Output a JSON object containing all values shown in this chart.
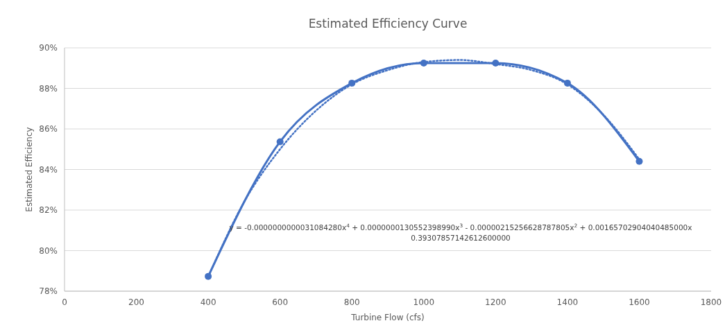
{
  "chart_data": {
    "type": "line",
    "title": "Estimated Efficiency Curve",
    "xlabel": "Turbine Flow (cfs)",
    "ylabel": "Estimated Efficiency",
    "series": [
      {
        "color": "#4472c4",
        "x": [
          400,
          600,
          800,
          1000,
          1200,
          1400,
          1600
        ],
        "values": [
          78.73,
          85.37,
          88.26,
          89.25,
          89.25,
          88.26,
          84.4
        ],
        "marker": "circle",
        "line_style": "solid"
      },
      {
        "color": "#4472c4",
        "x": [
          400,
          500,
          600,
          700,
          800,
          900,
          1000,
          1100,
          1200,
          1300,
          1400,
          1500,
          1600
        ],
        "values": [
          78.7,
          82.4,
          85.0,
          86.9,
          88.2,
          88.9,
          89.3,
          89.4,
          89.2,
          88.9,
          88.2,
          86.7,
          84.5
        ],
        "marker": "none",
        "line_style": "dotted"
      }
    ],
    "xlim": [
      0,
      1800
    ],
    "xticks": [
      0,
      200,
      400,
      600,
      800,
      1000,
      1200,
      1400,
      1600,
      1800
    ],
    "ylim": [
      78,
      90
    ],
    "yticks": [
      {
        "value": 78,
        "label": "78%"
      },
      {
        "value": 80,
        "label": "80%"
      },
      {
        "value": 82,
        "label": "82%"
      },
      {
        "value": 84,
        "label": "84%"
      },
      {
        "value": 86,
        "label": "86%"
      },
      {
        "value": 88,
        "label": "88%"
      },
      {
        "value": 90,
        "label": "90%"
      }
    ],
    "grid": "y",
    "annotations": [
      "y = -0.0000000000031084280x$^{4}$ + 0.0000000130552398990x$^{3}$ - 0.00000215256628787805x$^{2}$ + 0.00165702904040485000x",
      "0.39307857142612600000"
    ]
  }
}
